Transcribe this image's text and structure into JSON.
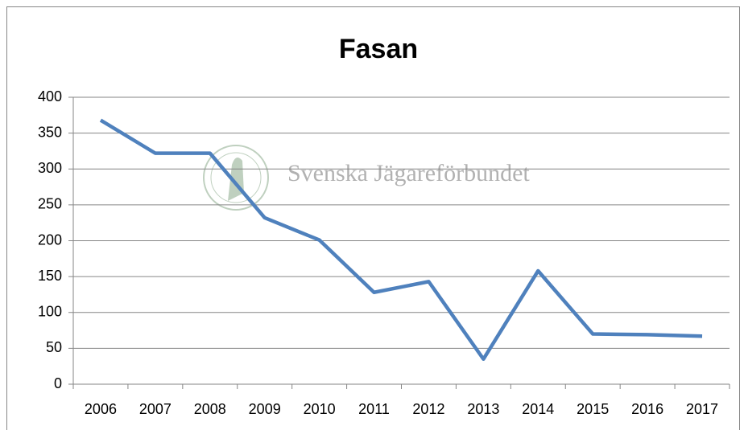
{
  "chart_data": {
    "type": "line",
    "title": "Fasan",
    "categories": [
      "2006",
      "2007",
      "2008",
      "2009",
      "2010",
      "2011",
      "2012",
      "2013",
      "2014",
      "2015",
      "2016",
      "2017"
    ],
    "series": [
      {
        "name": "Fasan",
        "color": "#4f81bd",
        "values": [
          368,
          322,
          322,
          232,
          201,
          128,
          143,
          35,
          158,
          70,
          69,
          67
        ]
      }
    ],
    "ylim": [
      0,
      400
    ],
    "yticks": [
      0,
      50,
      100,
      150,
      200,
      250,
      300,
      350,
      400
    ],
    "grid": true,
    "watermark": "Svenska Jägareförbundet"
  }
}
